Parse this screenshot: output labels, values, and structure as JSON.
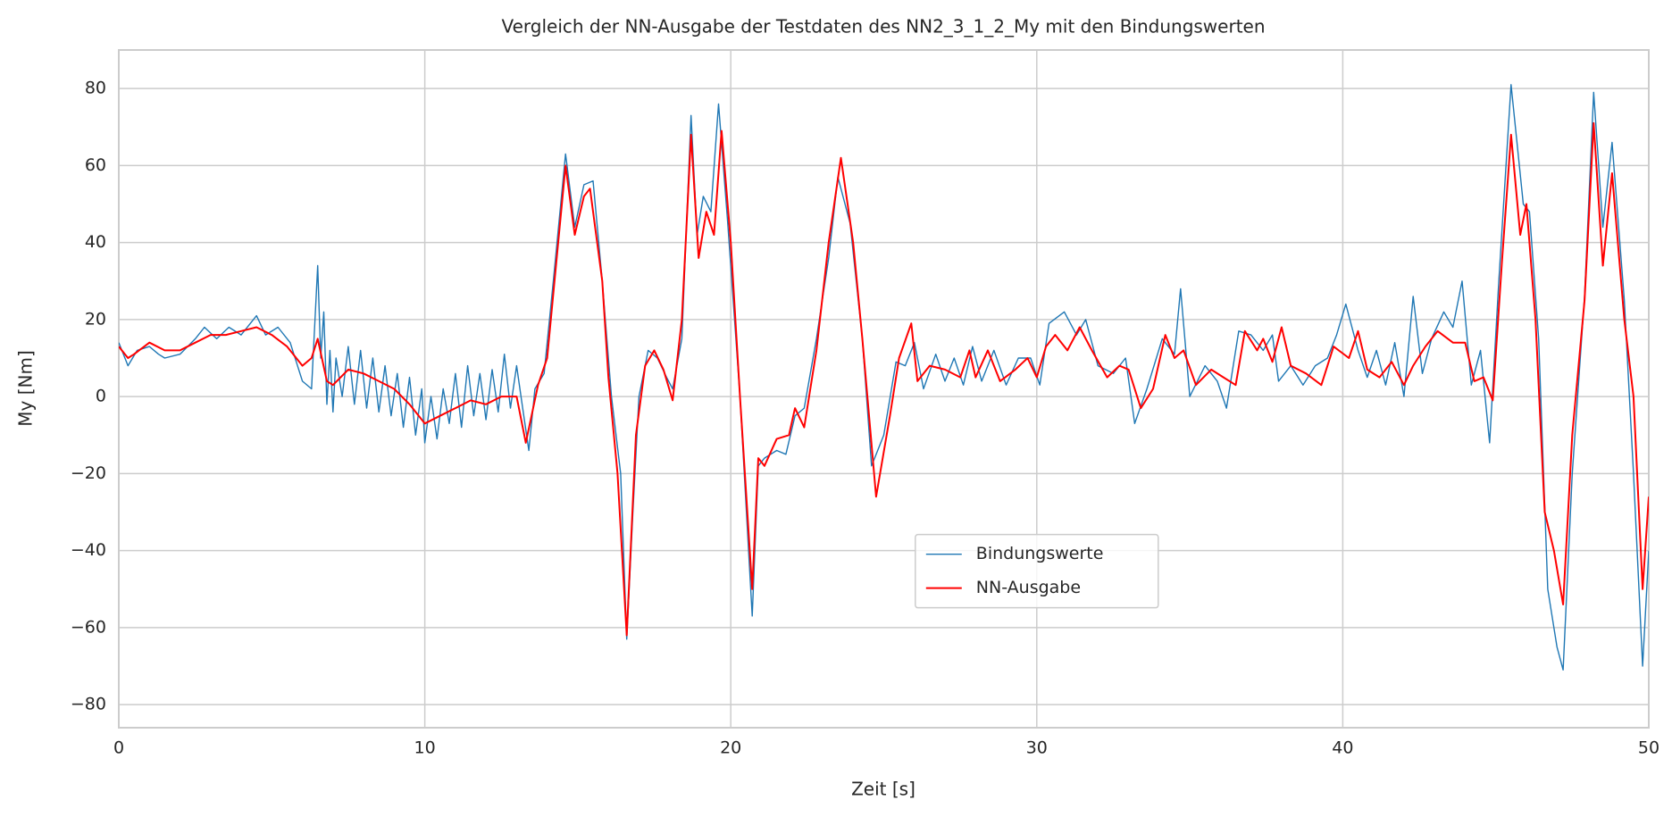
{
  "chart_data": {
    "type": "line",
    "title": "Vergleich der NN-Ausgabe der Testdaten des NN2_3_1_2_My mit den Bindungswerten",
    "x_label": "Zeit [s]",
    "y_label": "My [Nm]",
    "xlim": [
      0,
      50
    ],
    "ylim": [
      -86,
      90
    ],
    "xticks": [
      0,
      10,
      20,
      30,
      40,
      50
    ],
    "yticks": [
      {
        "value": -80,
        "label": "−80"
      },
      {
        "value": -60,
        "label": "−60"
      },
      {
        "value": -40,
        "label": "−40"
      },
      {
        "value": -20,
        "label": "−20"
      },
      0,
      20,
      40,
      60,
      80
    ],
    "grid": true,
    "legend": "lower center",
    "series": [
      {
        "name": "Bindungswerte",
        "color": "#1f77b4",
        "x": [
          0,
          0.3,
          0.6,
          1,
          1.3,
          1.5,
          2,
          2.5,
          2.8,
          3.2,
          3.6,
          4,
          4.5,
          4.8,
          5.2,
          5.6,
          6,
          6.3,
          6.5,
          6.6,
          6.7,
          6.8,
          6.9,
          7,
          7.1,
          7.3,
          7.5,
          7.7,
          7.9,
          8.1,
          8.3,
          8.5,
          8.7,
          8.9,
          9.1,
          9.3,
          9.5,
          9.7,
          9.9,
          10,
          10.2,
          10.4,
          10.6,
          10.8,
          11,
          11.2,
          11.4,
          11.6,
          11.8,
          12,
          12.2,
          12.4,
          12.6,
          12.8,
          13,
          13.2,
          13.4,
          13.6,
          13.9,
          14.2,
          14.6,
          14.9,
          15.2,
          15.5,
          15.8,
          16.1,
          16.4,
          16.6,
          16.8,
          17,
          17.3,
          17.6,
          17.9,
          18.1,
          18.4,
          18.7,
          18.9,
          19.1,
          19.35,
          19.6,
          19.9,
          20.3,
          20.7,
          20.9,
          21.1,
          21.5,
          21.8,
          22.1,
          22.4,
          22.8,
          23.2,
          23.5,
          23.9,
          24.3,
          24.6,
          25,
          25.4,
          25.7,
          26,
          26.3,
          26.7,
          27,
          27.3,
          27.6,
          27.9,
          28.2,
          28.6,
          29,
          29.4,
          29.8,
          30.1,
          30.4,
          30.9,
          31.3,
          31.6,
          32,
          32.5,
          32.9,
          33.2,
          33.6,
          34.1,
          34.5,
          34.7,
          35,
          35.5,
          35.9,
          36.2,
          36.6,
          37,
          37.4,
          37.7,
          37.9,
          38.3,
          38.7,
          39.1,
          39.5,
          39.8,
          40.1,
          40.5,
          40.8,
          41.1,
          41.4,
          41.7,
          42,
          42.3,
          42.6,
          42.9,
          43.3,
          43.6,
          43.9,
          44.2,
          44.5,
          44.8,
          45.1,
          45.5,
          45.9,
          46.1,
          46.4,
          46.7,
          47,
          47.2,
          47.5,
          47.9,
          48.2,
          48.5,
          48.8,
          49.2,
          49.5,
          49.8,
          50
        ],
        "values": [
          14,
          8,
          12,
          13,
          11,
          10,
          11,
          15,
          18,
          15,
          18,
          16,
          21,
          16,
          18,
          14,
          4,
          2,
          34,
          10,
          22,
          -2,
          12,
          -4,
          10,
          0,
          13,
          -2,
          12,
          -3,
          10,
          -4,
          8,
          -5,
          6,
          -8,
          5,
          -10,
          2,
          -12,
          0,
          -11,
          2,
          -7,
          6,
          -8,
          8,
          -5,
          6,
          -6,
          7,
          -4,
          11,
          -3,
          8,
          -3,
          -14,
          2,
          6,
          30,
          63,
          44,
          55,
          56,
          30,
          0,
          -20,
          -63,
          -30,
          0,
          12,
          10,
          5,
          2,
          15,
          73,
          42,
          52,
          48,
          76,
          45,
          0,
          -57,
          -18,
          -16,
          -14,
          -15,
          -5,
          -3,
          15,
          36,
          57,
          45,
          15,
          -18,
          -10,
          9,
          8,
          14,
          2,
          11,
          4,
          10,
          3,
          13,
          4,
          12,
          3,
          10,
          10,
          3,
          19,
          22,
          16,
          20,
          8,
          6,
          10,
          -7,
          2,
          15,
          11,
          28,
          0,
          8,
          4,
          -3,
          17,
          16,
          12,
          16,
          4,
          8,
          3,
          8,
          10,
          16,
          24,
          12,
          5,
          12,
          3,
          14,
          0,
          26,
          6,
          15,
          22,
          18,
          30,
          3,
          12,
          -12,
          30,
          81,
          50,
          48,
          15,
          -50,
          -65,
          -71,
          -20,
          26,
          79,
          44,
          66,
          25,
          -20,
          -70,
          -40
        ]
      },
      {
        "name": "NN-Ausgabe",
        "color": "#ff0000",
        "x": [
          0,
          0.3,
          0.5,
          1,
          1.5,
          2,
          2.5,
          3,
          3.5,
          4,
          4.5,
          5,
          5.5,
          6,
          6.3,
          6.5,
          6.8,
          7,
          7.5,
          8,
          8.5,
          9,
          9.5,
          10,
          10.5,
          11,
          11.5,
          12,
          12.5,
          13,
          13.3,
          13.7,
          14,
          14.3,
          14.6,
          14.9,
          15.2,
          15.4,
          15.8,
          16,
          16.3,
          16.6,
          16.9,
          17.2,
          17.5,
          17.8,
          18.1,
          18.4,
          18.7,
          18.95,
          19.2,
          19.45,
          19.7,
          20,
          20.3,
          20.7,
          20.9,
          21.1,
          21.5,
          21.9,
          22.1,
          22.4,
          22.8,
          23.2,
          23.6,
          24,
          24.3,
          24.75,
          25.2,
          25.5,
          25.9,
          26.1,
          26.5,
          27,
          27.5,
          27.8,
          28,
          28.4,
          28.8,
          29.3,
          29.7,
          30,
          30.3,
          30.6,
          31,
          31.4,
          31.8,
          32.3,
          32.7,
          33,
          33.4,
          33.8,
          34.2,
          34.5,
          34.8,
          35.2,
          35.7,
          36.1,
          36.5,
          36.8,
          37.2,
          37.4,
          37.7,
          38,
          38.3,
          38.8,
          39.3,
          39.7,
          40.2,
          40.5,
          40.8,
          41.2,
          41.6,
          42,
          42.3,
          42.7,
          43.1,
          43.6,
          44,
          44.3,
          44.6,
          44.9,
          45.2,
          45.5,
          45.8,
          46,
          46.3,
          46.6,
          46.9,
          47.2,
          47.5,
          47.9,
          48.2,
          48.5,
          48.8,
          49.2,
          49.5,
          49.8,
          50
        ],
        "values": [
          13,
          10,
          11,
          14,
          12,
          12,
          14,
          16,
          16,
          17,
          18,
          16,
          13,
          8,
          10,
          15,
          4,
          3,
          7,
          6,
          4,
          2,
          -2,
          -7,
          -5,
          -3,
          -1,
          -2,
          0,
          0,
          -12,
          3,
          10,
          35,
          60,
          42,
          52,
          54,
          30,
          5,
          -20,
          -62,
          -10,
          8,
          12,
          7,
          -1,
          20,
          68,
          36,
          48,
          42,
          69,
          40,
          0,
          -50,
          -16,
          -18,
          -11,
          -10,
          -3,
          -8,
          12,
          40,
          62,
          40,
          15,
          -26,
          -5,
          10,
          19,
          4,
          8,
          7,
          5,
          12,
          5,
          12,
          4,
          7,
          10,
          5,
          13,
          16,
          12,
          18,
          12,
          5,
          8,
          7,
          -3,
          2,
          16,
          10,
          12,
          3,
          7,
          5,
          3,
          17,
          12,
          15,
          9,
          18,
          8,
          6,
          3,
          13,
          10,
          17,
          7,
          5,
          9,
          3,
          8,
          13,
          17,
          14,
          14,
          4,
          5,
          -1,
          35,
          68,
          42,
          50,
          20,
          -30,
          -40,
          -54,
          -10,
          25,
          71,
          34,
          58,
          20,
          0,
          -50,
          -26
        ]
      }
    ]
  }
}
